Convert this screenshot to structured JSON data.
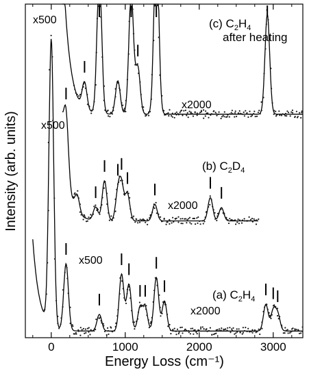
{
  "chart_data": {
    "type": "line",
    "xlabel": "Energy Loss (cm⁻¹)",
    "ylabel": "Intensity (arb. units)",
    "xlim": [
      -350,
      3400
    ],
    "x_ticks": [
      0,
      1000,
      2000,
      3000
    ],
    "x_minor_ticks": [
      -250,
      250,
      500,
      750,
      1250,
      1500,
      1750,
      2250,
      2500,
      2750,
      3250
    ],
    "y_ticks": "none",
    "grid": false,
    "legend": "none",
    "colors": {
      "line": "#000000",
      "points": "#1a1a1a"
    },
    "series": [
      {
        "label_letter": "(c) C",
        "label_sub": "2",
        "label_tail": "H",
        "label_sub2": "4",
        "label_line2": "after heating",
        "low_gain": "x500",
        "high_gain": "x2000",
        "gain_change_x": 800,
        "offset": 0.62,
        "baseline": 0.05,
        "start_x": 150,
        "end_x": 3400,
        "peaks_cm1": [
          450,
          650,
          900,
          1080,
          1170,
          1420,
          2920
        ],
        "peak_heights": [
          0.08,
          0.42,
          0.1,
          0.36,
          0.14,
          0.55,
          0.3
        ],
        "tick_marks_cm1": [
          450,
          650,
          1080,
          1170,
          1420,
          2920
        ]
      },
      {
        "label_letter": "(b) C",
        "label_sub": "2",
        "label_tail": "D",
        "label_sub2": "4",
        "low_gain": "x500",
        "high_gain": "x2000",
        "gain_change_x": 520,
        "offset": 0.33,
        "baseline": 0.02,
        "start_x": 150,
        "end_x": 2800,
        "peaks_cm1": [
          200,
          350,
          600,
          720,
          900,
          950,
          1030,
          1400,
          2150,
          2300
        ],
        "peak_heights": [
          0.18,
          0.05,
          0.04,
          0.12,
          0.08,
          0.1,
          0.08,
          0.05,
          0.07,
          0.04
        ],
        "tick_marks_cm1": [
          200,
          600,
          720,
          900,
          950,
          1030,
          1400,
          2150,
          2300
        ]
      },
      {
        "label_letter": "(a) C",
        "label_sub": "2",
        "label_tail": "H",
        "label_sub2": "4",
        "low_gain": "x500",
        "high_gain": "x2000",
        "gain_change_x": 520,
        "offset": 0.0,
        "baseline": 0.02,
        "start_x": -250,
        "end_x": 3400,
        "elastic_peak_x": 0,
        "elastic_peak_height": 0.86,
        "peaks_cm1": [
          200,
          650,
          950,
          1050,
          1200,
          1270,
          1420,
          1530,
          2900,
          3000,
          3060
        ],
        "peak_heights": [
          0.2,
          0.05,
          0.17,
          0.14,
          0.07,
          0.07,
          0.16,
          0.09,
          0.08,
          0.06,
          0.05
        ],
        "tick_marks_cm1": [
          200,
          650,
          950,
          1050,
          1200,
          1270,
          1420,
          1530,
          2900,
          3000,
          3060
        ]
      }
    ]
  }
}
